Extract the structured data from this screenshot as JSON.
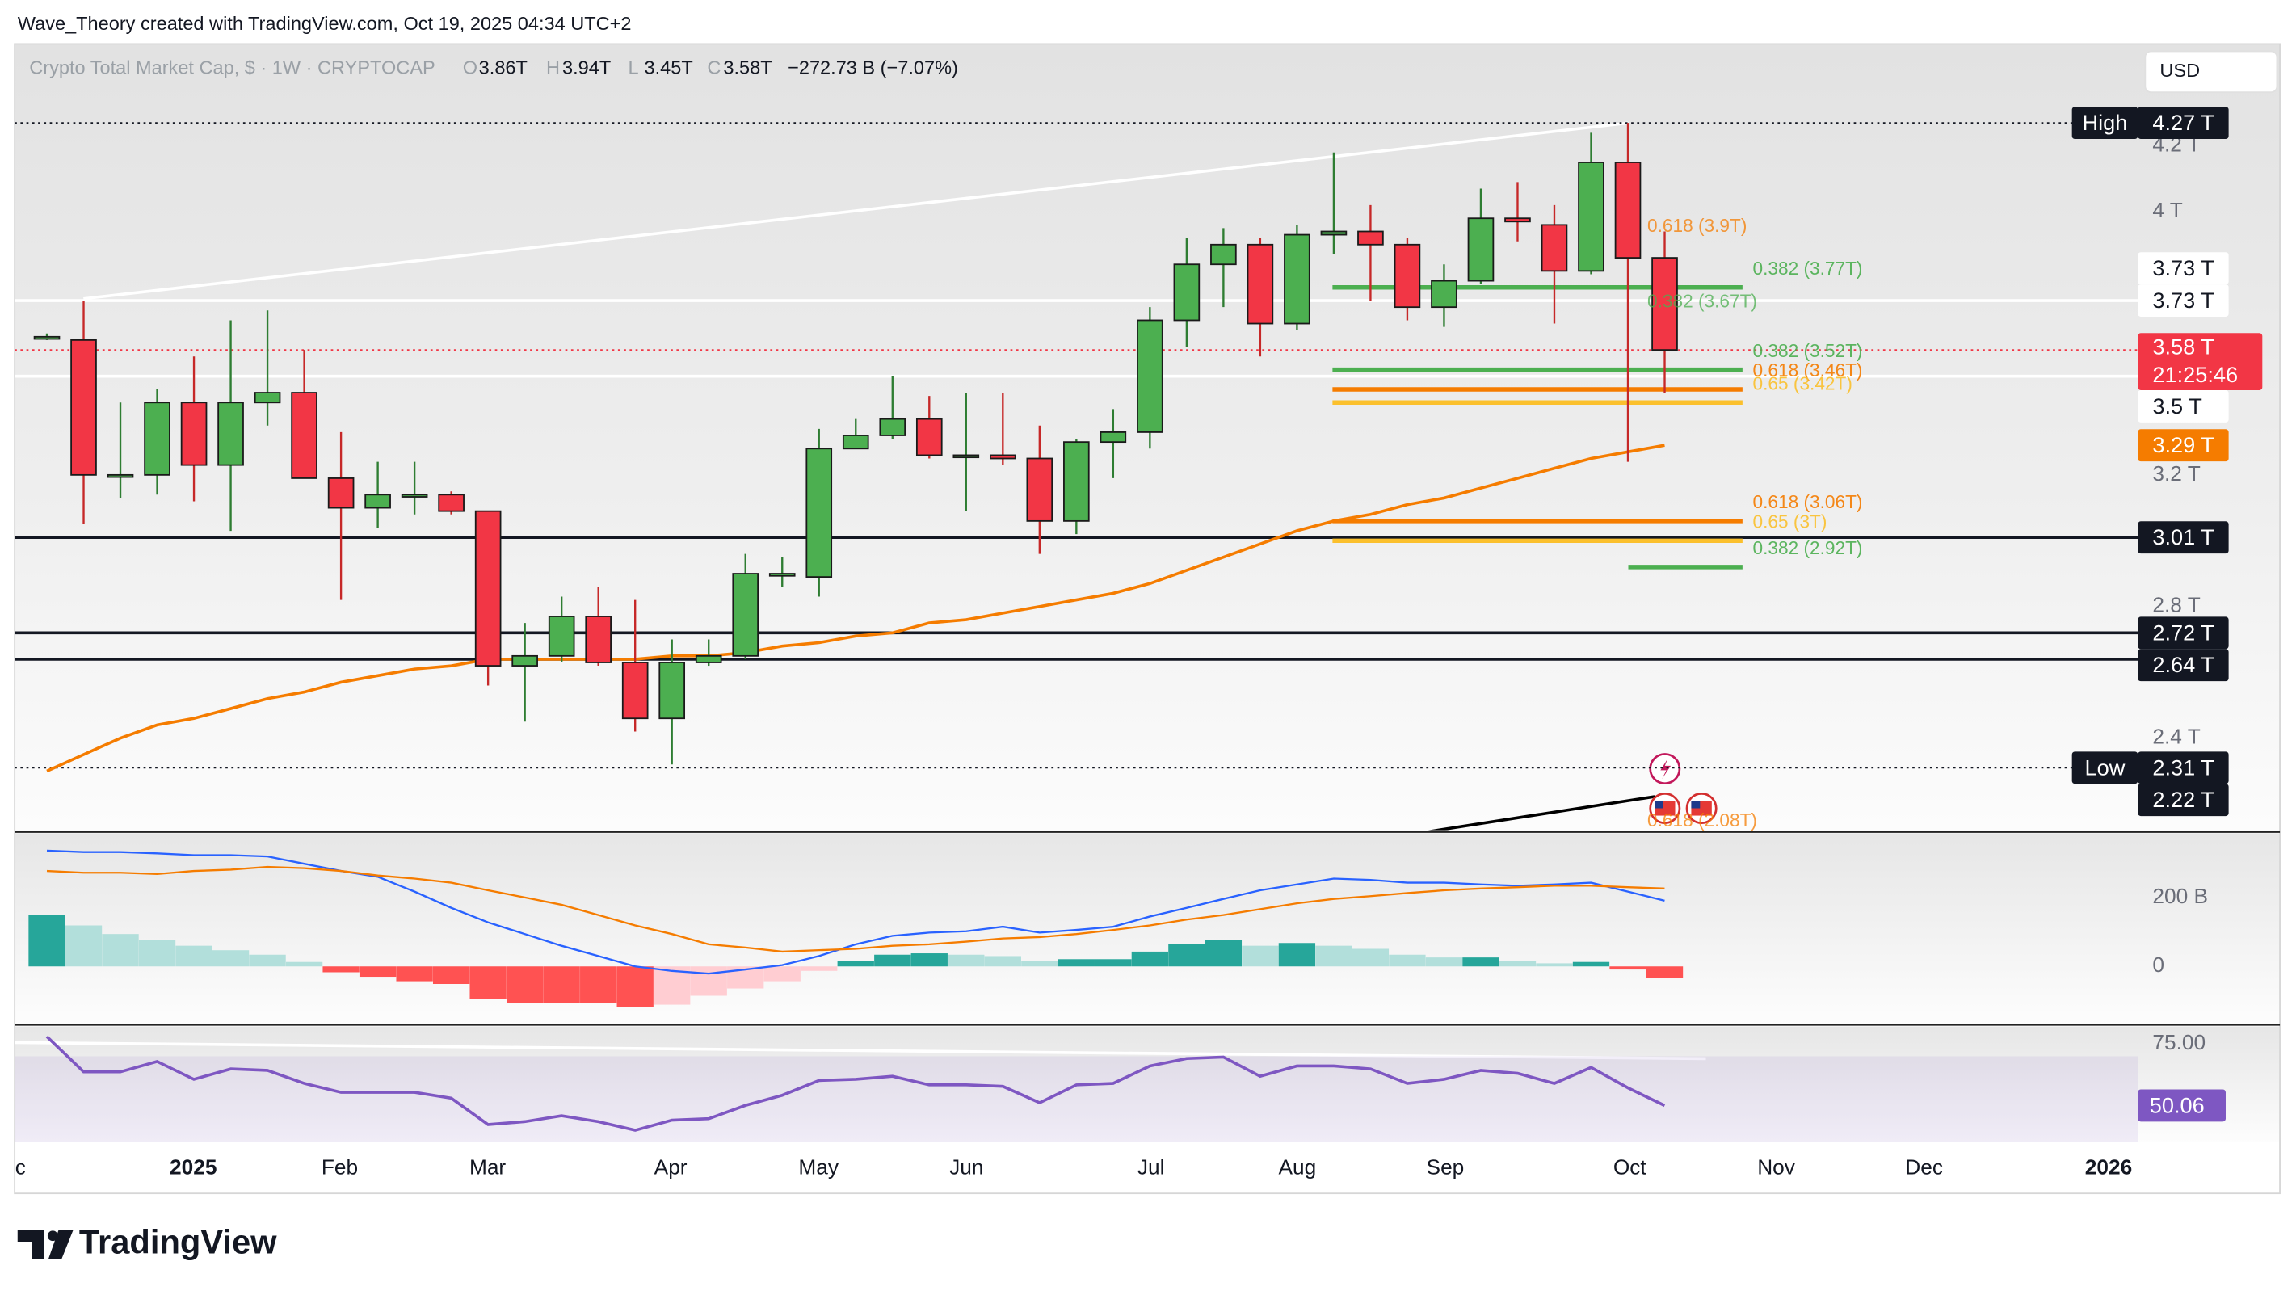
{
  "header": {
    "attribution": "Wave_Theory created with TradingView.com, Oct 19, 2025 04:34 UTC+2",
    "symbol": "Crypto Total Market Cap, $ · 1W · CRYPTOCAP",
    "ohlc": [
      {
        "key": "O",
        "value": "3.86T"
      },
      {
        "key": "H",
        "value": "3.94T"
      },
      {
        "key": "L",
        "value": "3.45T"
      },
      {
        "key": "C",
        "value": "3.58T"
      }
    ],
    "change": "−272.73 B (−7.07%)"
  },
  "currency": "USD",
  "brand": "TradingView",
  "chart_data": [
    {
      "type": "candlestick",
      "up_color": "#4caf50",
      "down_color": "#f23645",
      "open": [
        3.62,
        3.61,
        3.2,
        3.2,
        3.42,
        3.23,
        3.42,
        3.45,
        3.19,
        3.1,
        3.14,
        3.14,
        3.09,
        2.62,
        2.65,
        2.77,
        2.63,
        2.46,
        2.63,
        2.65,
        2.9,
        2.89,
        3.28,
        3.32,
        3.37,
        3.26,
        3.26,
        3.25,
        3.06,
        3.3,
        3.33,
        3.67,
        3.84,
        3.9,
        3.66,
        3.93,
        3.94,
        3.9,
        3.71,
        3.79,
        3.98,
        3.96,
        3.82,
        4.15,
        3.86
      ],
      "high": [
        3.63,
        3.73,
        3.42,
        3.46,
        3.56,
        3.67,
        3.7,
        3.58,
        3.33,
        3.24,
        3.24,
        3.15,
        3.09,
        2.75,
        2.83,
        2.86,
        2.82,
        2.7,
        2.7,
        2.96,
        2.95,
        3.34,
        3.37,
        3.5,
        3.44,
        3.45,
        3.45,
        3.35,
        3.31,
        3.4,
        3.71,
        3.92,
        3.95,
        3.92,
        3.96,
        4.18,
        4.02,
        3.92,
        3.84,
        4.07,
        4.09,
        4.02,
        4.24,
        4.27,
        3.94
      ],
      "low": [
        3.61,
        3.05,
        3.13,
        3.14,
        3.12,
        3.03,
        3.35,
        3.19,
        2.82,
        3.04,
        3.08,
        3.08,
        2.56,
        2.45,
        2.63,
        2.62,
        2.42,
        2.32,
        2.62,
        2.64,
        2.86,
        2.83,
        3.28,
        3.31,
        3.25,
        3.09,
        3.23,
        2.96,
        3.02,
        3.19,
        3.28,
        3.59,
        3.71,
        3.56,
        3.64,
        3.87,
        3.73,
        3.67,
        3.65,
        3.78,
        3.91,
        3.66,
        3.81,
        3.24,
        3.45
      ],
      "close": [
        3.62,
        3.2,
        3.2,
        3.42,
        3.23,
        3.42,
        3.45,
        3.19,
        3.1,
        3.14,
        3.14,
        3.09,
        2.62,
        2.65,
        2.77,
        2.63,
        2.46,
        2.63,
        2.65,
        2.9,
        2.9,
        3.28,
        3.32,
        3.37,
        3.26,
        3.26,
        3.25,
        3.06,
        3.3,
        3.33,
        3.67,
        3.84,
        3.9,
        3.66,
        3.93,
        3.94,
        3.9,
        3.71,
        3.79,
        3.98,
        3.97,
        3.82,
        4.15,
        3.86,
        3.58
      ],
      "overlays": [
        {
          "color": "#f57c00",
          "values": [
            2.3,
            2.35,
            2.4,
            2.44,
            2.46,
            2.49,
            2.52,
            2.54,
            2.57,
            2.59,
            2.61,
            2.62,
            2.64,
            2.64,
            2.64,
            2.64,
            2.64,
            2.65,
            2.65,
            2.66,
            2.68,
            2.69,
            2.71,
            2.72,
            2.75,
            2.76,
            2.78,
            2.8,
            2.82,
            2.84,
            2.87,
            2.91,
            2.95,
            2.99,
            3.03,
            3.06,
            3.08,
            3.11,
            3.13,
            3.16,
            3.19,
            3.22,
            3.25,
            3.27,
            3.29
          ]
        }
      ],
      "ylim": [
        2.12,
        4.51
      ],
      "yticks": [
        {
          "value": 4.2,
          "label": "4.2 T"
        },
        {
          "value": 4,
          "label": "4 T"
        },
        {
          "value": 3.2,
          "label": "3.2 T"
        },
        {
          "value": 2.8,
          "label": "2.8 T"
        },
        {
          "value": 2.4,
          "label": "2.4 T"
        }
      ],
      "xticks": [
        "c",
        "2025",
        "Feb",
        "Mar",
        "Apr",
        "May",
        "Jun",
        "Jul",
        "Aug",
        "Sep",
        "Oct",
        "Nov",
        "Dec",
        "2026"
      ],
      "price_labels": [
        {
          "value": 4.27,
          "label": "4.27 T",
          "tag": "High",
          "color": "#131722",
          "line": "dotted"
        },
        {
          "value": 3.73,
          "label": "3.73 T",
          "color": "#ffffff",
          "line": "solid"
        },
        {
          "value": 3.73,
          "label": "3.73 T",
          "color": "#ffffff",
          "line": "none"
        },
        {
          "value": 3.58,
          "label": "3.58 T",
          "countdown": "21:25:46",
          "color": "#f23645",
          "line": "dotted"
        },
        {
          "value": 3.5,
          "label": "3.5 T",
          "color": "#ffffff",
          "line": "solid"
        },
        {
          "value": 3.29,
          "label": "3.29 T",
          "color": "#f57c00",
          "line": "none"
        },
        {
          "value": 3.01,
          "label": "3.01 T",
          "color": "#131722",
          "line": "solid"
        },
        {
          "value": 2.72,
          "label": "2.72 T",
          "color": "#131722",
          "line": "solid"
        },
        {
          "value": 2.64,
          "label": "2.64 T",
          "color": "#131722",
          "line": "solid"
        },
        {
          "value": 2.31,
          "label": "2.31 T",
          "tag": "Low",
          "color": "#131722",
          "line": "dotted"
        },
        {
          "value": 2.22,
          "label": "2.22 T",
          "color": "#131722",
          "line": "none"
        }
      ],
      "fib_levels": [
        {
          "value": 3.9,
          "label": "0.618 (3.9T)",
          "color": "#f57c00",
          "line": false
        },
        {
          "value": 3.77,
          "label": "0.382 (3.77T)",
          "color": "#4caf50",
          "line": true
        },
        {
          "value": 3.67,
          "label": "0.382 (3.67T)",
          "color": "#4caf50",
          "line": false
        },
        {
          "value": 3.52,
          "label": "0.382 (3.52T)",
          "color": "#4caf50",
          "line": true
        },
        {
          "value": 3.46,
          "label": "0.618 (3.46T)",
          "color": "#f57c00",
          "line": true
        },
        {
          "value": 3.42,
          "label": "0.65 (3.42T)",
          "color": "#fbc02d",
          "line": true
        },
        {
          "value": 3.06,
          "label": "0.618 (3.06T)",
          "color": "#f57c00",
          "line": true
        },
        {
          "value": 3,
          "label": "0.65 (3T)",
          "color": "#fbc02d",
          "line": true
        },
        {
          "value": 2.92,
          "label": "0.382 (2.92T)",
          "color": "#4caf50",
          "line": true
        },
        {
          "value": 2.08,
          "label": "0.618 (2.08T)",
          "color": "#f57c00",
          "line": false
        }
      ]
    },
    {
      "type": "macd",
      "histogram": [
        149,
        119,
        94,
        77,
        60,
        47,
        34,
        13,
        -17,
        -30,
        -43,
        -51,
        -94,
        -106,
        -106,
        -106,
        -119,
        -111,
        -85,
        -64,
        -43,
        -13,
        17,
        34,
        38,
        34,
        30,
        17,
        21,
        21,
        43,
        64,
        77,
        60,
        68,
        60,
        51,
        34,
        26,
        26,
        17,
        9,
        13,
        -9,
        -34
      ],
      "hist_colors": [
        "#26a69a",
        "#b2dfdb",
        "#ff5252",
        "#ffcdd2"
      ],
      "series": [
        {
          "color": "#2962ff",
          "values": [
            336,
            332,
            332,
            328,
            323,
            323,
            319,
            298,
            277,
            260,
            217,
            170,
            128,
            94,
            60,
            30,
            0,
            -13,
            -21,
            -9,
            4,
            30,
            64,
            89,
            98,
            102,
            115,
            98,
            106,
            115,
            145,
            170,
            196,
            221,
            238,
            255,
            251,
            243,
            243,
            238,
            234,
            238,
            243,
            217,
            191
          ]
        },
        {
          "color": "#f57c00",
          "values": [
            277,
            272,
            272,
            268,
            277,
            281,
            289,
            285,
            277,
            264,
            255,
            243,
            221,
            200,
            179,
            149,
            119,
            94,
            64,
            55,
            43,
            47,
            51,
            60,
            64,
            72,
            81,
            85,
            94,
            106,
            119,
            136,
            149,
            166,
            183,
            196,
            204,
            213,
            221,
            226,
            230,
            234,
            234,
            230,
            226
          ]
        }
      ],
      "ylim": [
        -170,
        391
      ],
      "yticks": [
        {
          "value": 200,
          "label": "200 B"
        },
        0
      ]
    },
    {
      "type": "rsi",
      "color": "#7e57c2",
      "values": [
        78,
        63.7,
        63.7,
        67.9,
        60.7,
        64.9,
        64.3,
        59,
        55.4,
        55.4,
        55.4,
        53,
        42.3,
        43.5,
        45.9,
        43.5,
        40,
        44.1,
        44.7,
        50.1,
        54.2,
        60.2,
        60.7,
        61.9,
        58.4,
        58.4,
        57.8,
        51.2,
        58.4,
        59,
        66.1,
        69.1,
        69.7,
        61.9,
        66.1,
        66.1,
        64.9,
        59,
        60.7,
        64.3,
        63.1,
        59,
        65.5,
        57.2,
        50.06
      ],
      "ylim": [
        35.2,
        82.7
      ],
      "yticks": [
        {
          "value": 75,
          "label": "75.00"
        }
      ],
      "band": [
        30,
        70
      ]
    }
  ]
}
